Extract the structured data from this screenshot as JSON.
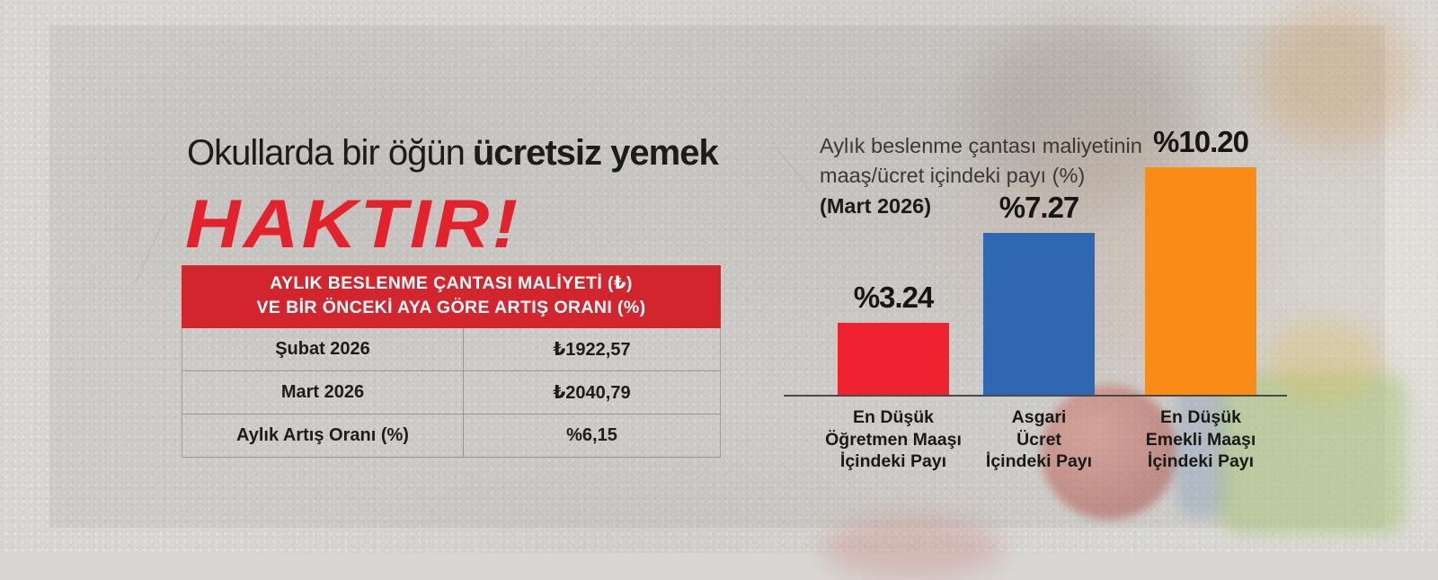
{
  "poster": {
    "headline": {
      "regular": "Okullarda bir öğün",
      "bold": "ücretsiz yemek",
      "shout": "HAKTIR!"
    },
    "colors": {
      "accent_red": "#e4222c",
      "table_header_red": "#d2252e",
      "bar_red": "#ee2230",
      "bar_blue": "#2f67b3",
      "bar_orange": "#f88c16"
    }
  },
  "table": {
    "header_line1": "AYLIK BESLENME ÇANTASI MALİYETİ (₺)",
    "header_line2": "VE BİR ÖNCEKİ AYA GÖRE ARTIŞ ORANI (%)",
    "rows": [
      {
        "label": "Şubat 2026",
        "value": "₺1922,57"
      },
      {
        "label": "Mart 2026",
        "value": "₺2040,79"
      },
      {
        "label": "Aylık Artış Oranı (%)",
        "value": "%6,15"
      }
    ]
  },
  "chart": {
    "title_line1": "Aylık beslenme çantası maliyetinin",
    "title_line2": "maaş/ücret içindeki payı (%)",
    "subtitle": "(Mart 2026)"
  },
  "chart_data": {
    "type": "bar",
    "title": "Aylık beslenme çantası maliyetinin maaş/ücret içindeki payı (%) (Mart 2026)",
    "categories": [
      "En Düşük Öğretmen Maaşı İçindeki Payı",
      "Asgari Ücret İçindeki Payı",
      "En Düşük Emekli Maaşı İçindeki Payı"
    ],
    "category_lines": [
      [
        "En Düşük",
        "Öğretmen Maaşı",
        "İçindeki Payı"
      ],
      [
        "Asgari",
        "Ücret",
        "İçindeki Payı"
      ],
      [
        "En Düşük",
        "Emekli Maaşı",
        "İçindeki Payı"
      ]
    ],
    "values": [
      3.24,
      7.27,
      10.2
    ],
    "value_labels": [
      "%3.24",
      "%7.27",
      "%10.20"
    ],
    "colors": [
      "#ee2230",
      "#2f67b3",
      "#f88c16"
    ],
    "ylim": [
      0,
      11
    ],
    "grid": false,
    "legend": false
  }
}
